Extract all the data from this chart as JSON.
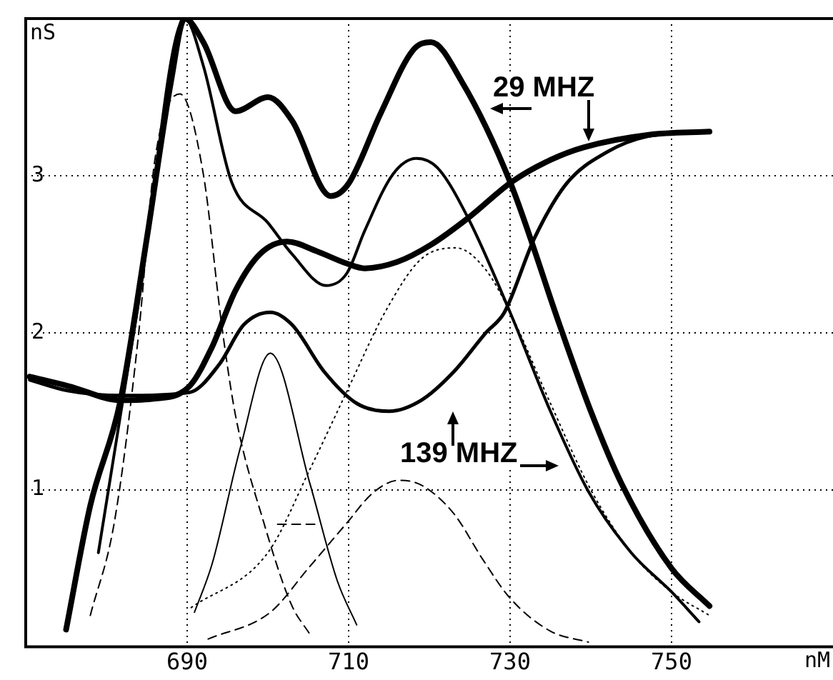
{
  "chart_data": {
    "type": "line",
    "xlabel": "nM",
    "ylabel": "nS",
    "xlim": [
      670,
      770
    ],
    "xticks": [
      690,
      710,
      730,
      750
    ],
    "ylim": [
      0,
      4
    ],
    "yticks": [
      1,
      2,
      3
    ],
    "grid": true,
    "legend": false,
    "marker": "none",
    "annotations": [
      "29 MHZ",
      "139 MHZ"
    ],
    "series": [
      {
        "color": "#000000",
        "line_style": "solid",
        "x": [
          675,
          678,
          681.7,
          685,
          688,
          689.7,
          692,
          696,
          700,
          703,
          707.8,
          710,
          714,
          718,
          720.2,
          724,
          730,
          736.2,
          740,
          743.8,
          750,
          754.7
        ],
        "values": [
          0.11,
          0.9,
          1.56,
          2.6,
          3.6,
          4.0,
          3.85,
          3.41,
          3.5,
          3.35,
          2.87,
          2.95,
          3.4,
          3.8,
          3.85,
          3.6,
          2.96,
          2.04,
          1.5,
          1.04,
          0.5,
          0.26
        ]
      },
      {
        "color": "#000000",
        "line_style": "solid",
        "x": [
          679,
          684,
          689.7,
          692,
          695.5,
          700,
          703,
          707.2,
          709.8,
          712,
          715.5,
          718.4,
          721,
          724.8,
          730,
          735,
          739.7,
          745,
          750,
          753.4
        ],
        "values": [
          0.6,
          2.2,
          4.0,
          3.7,
          2.96,
          2.7,
          2.5,
          2.3,
          2.38,
          2.65,
          3.01,
          3.11,
          3.05,
          2.73,
          2.13,
          1.5,
          0.99,
          0.6,
          0.35,
          0.16
        ]
      },
      {
        "color": "#000000",
        "line_style": "solid",
        "x": [
          670.5,
          675.3,
          681.9,
          686,
          690.3,
          693,
          696,
          699,
          702.4,
          706,
          709.8,
          712,
          716,
          720.2,
          724.8,
          730.2,
          735,
          739.1,
          747.2,
          754.7
        ],
        "values": [
          1.72,
          1.66,
          1.57,
          1.58,
          1.66,
          1.9,
          2.27,
          2.5,
          2.58,
          2.52,
          2.44,
          2.41,
          2.45,
          2.56,
          2.73,
          2.96,
          3.1,
          3.18,
          3.26,
          3.28
        ]
      },
      {
        "color": "#000000",
        "line_style": "solid",
        "x": [
          670.5,
          675.3,
          681.9,
          690.3,
          694,
          697,
          700.3,
          703,
          707,
          711,
          715,
          719,
          723,
          727,
          729.3,
          733,
          737,
          742,
          747,
          754.7
        ],
        "values": [
          1.7,
          1.63,
          1.6,
          1.62,
          1.8,
          2.05,
          2.13,
          2.05,
          1.75,
          1.55,
          1.5,
          1.57,
          1.75,
          2.0,
          2.13,
          2.6,
          2.95,
          3.15,
          3.25,
          3.28
        ]
      },
      {
        "color": "#000000",
        "line_style": "dashed",
        "x": [
          678,
          681,
          684,
          686,
          689.1,
          692,
          694.3,
          696,
          699.5,
          702.9,
          705.2
        ],
        "values": [
          0.2,
          0.8,
          2.0,
          3.1,
          3.52,
          3.01,
          2.04,
          1.47,
          0.79,
          0.27,
          0.08
        ]
      },
      {
        "color": "#000000",
        "line_style": "solid",
        "x": [
          690.9,
          693.1,
          696.6,
          700.3,
          705.2,
          708.6,
          711
        ],
        "values": [
          0.22,
          0.53,
          1.27,
          1.87,
          1.04,
          0.42,
          0.14
        ]
      },
      {
        "color": "#000000",
        "line_style": "dotted",
        "x": [
          690.5,
          700,
          705.2,
          710,
          714.5,
          719,
          723.3,
          727,
          730,
          735,
          740,
          745,
          750,
          754.7
        ],
        "values": [
          0.25,
          0.6,
          1.13,
          1.65,
          2.13,
          2.47,
          2.54,
          2.4,
          2.13,
          1.55,
          1.0,
          0.6,
          0.35,
          0.2
        ]
      },
      {
        "color": "#000000",
        "line_style": "dashed",
        "x": [
          692.6,
          700.3,
          705,
          709.8,
          713,
          716.2,
          719,
          723,
          726.7,
          730,
          735,
          739.7
        ],
        "values": [
          0.05,
          0.22,
          0.5,
          0.79,
          0.98,
          1.06,
          1.03,
          0.85,
          0.55,
          0.31,
          0.1,
          0.03
        ]
      },
      {
        "color": "#000000",
        "line_style": "dashed",
        "x": [
          701.2,
          705.9
        ],
        "values": [
          0.78,
          0.78
        ]
      }
    ]
  }
}
